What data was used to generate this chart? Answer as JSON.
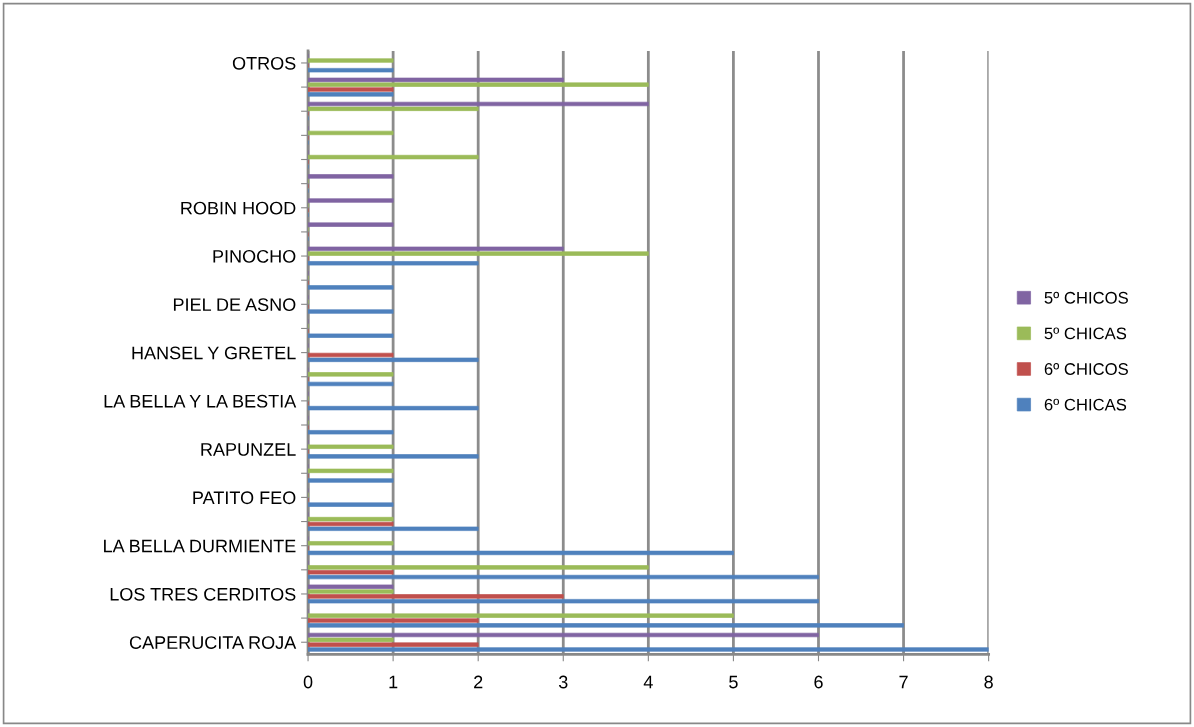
{
  "chart_data": {
    "type": "bar",
    "orientation": "horizontal",
    "categories": [
      "OTROS",
      null,
      null,
      null,
      null,
      null,
      "ROBIN HOOD",
      null,
      "PINOCHO",
      null,
      "PIEL DE ASNO",
      null,
      "HANSEL Y GRETEL",
      null,
      "LA BELLA Y LA BESTIA",
      null,
      "RAPUNZEL",
      null,
      "PATITO FEO",
      null,
      "LA BELLA DURMIENTE",
      null,
      "LOS TRES CERDITOS",
      null,
      "CAPERUCITA ROJA"
    ],
    "series": [
      {
        "name": "6º CHICAS",
        "color": "#4f81bd",
        "values": [
          1,
          1,
          0,
          0,
          0,
          0,
          0,
          0,
          2,
          1,
          1,
          1,
          2,
          1,
          2,
          1,
          2,
          1,
          1,
          2,
          5,
          6,
          6,
          7,
          8
        ]
      },
      {
        "name": "6º CHICOS",
        "color": "#c0504d",
        "values": [
          0,
          1,
          0,
          0,
          0,
          0,
          0,
          0,
          0,
          0,
          0,
          0,
          1,
          0,
          0,
          0,
          0,
          0,
          0,
          1,
          0,
          1,
          3,
          2,
          2
        ]
      },
      {
        "name": "5º CHICAS",
        "color": "#9bbb59",
        "values": [
          1,
          4,
          2,
          1,
          2,
          0,
          0,
          0,
          4,
          0,
          0,
          0,
          0,
          1,
          0,
          0,
          1,
          1,
          0,
          1,
          1,
          4,
          1,
          5,
          1
        ]
      },
      {
        "name": "5º CHICOS",
        "color": "#8064a2",
        "values": [
          0,
          3,
          4,
          0,
          0,
          1,
          1,
          1,
          3,
          0,
          0,
          0,
          0,
          0,
          0,
          0,
          0,
          0,
          0,
          0,
          0,
          0,
          1,
          0,
          6
        ]
      }
    ],
    "xlim": [
      0,
      8
    ],
    "xticks": [
      0,
      1,
      2,
      3,
      4,
      5,
      6,
      7,
      8
    ],
    "grid": "x",
    "legend": "right"
  }
}
